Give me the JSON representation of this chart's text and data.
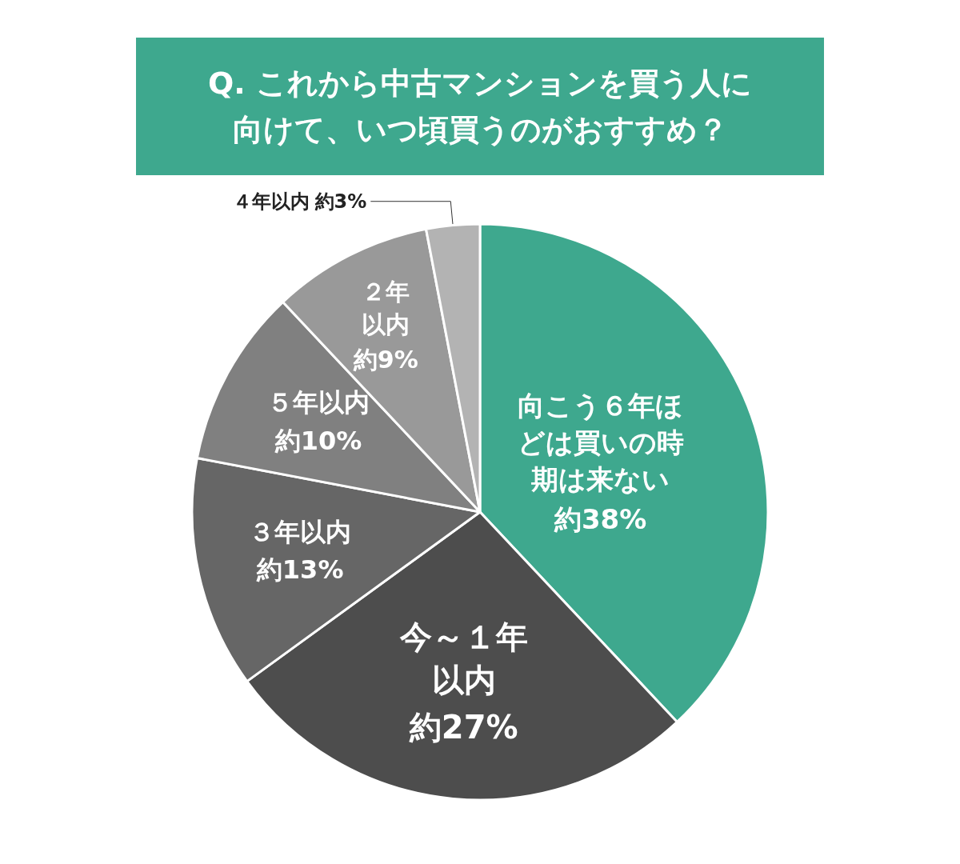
{
  "chart_data": {
    "type": "pie",
    "title": "Q. これから中古マンションを買う人に向けて、いつ頃買うのがおすすめ？",
    "categories": [
      "向こう６年ほどは買いの時期は来ない",
      "今～１年以内",
      "３年以内",
      "５年以内",
      "２年以内",
      "４年以内"
    ],
    "values": [
      38,
      27,
      13,
      10,
      9,
      3
    ],
    "value_labels": [
      "約38%",
      "約27%",
      "約13%",
      "約10%",
      "約9%",
      "約3%"
    ],
    "colors": [
      "#3ea88e",
      "#4d4d4d",
      "#666666",
      "#808080",
      "#999999",
      "#b3b3b3"
    ],
    "legend": false
  }
}
